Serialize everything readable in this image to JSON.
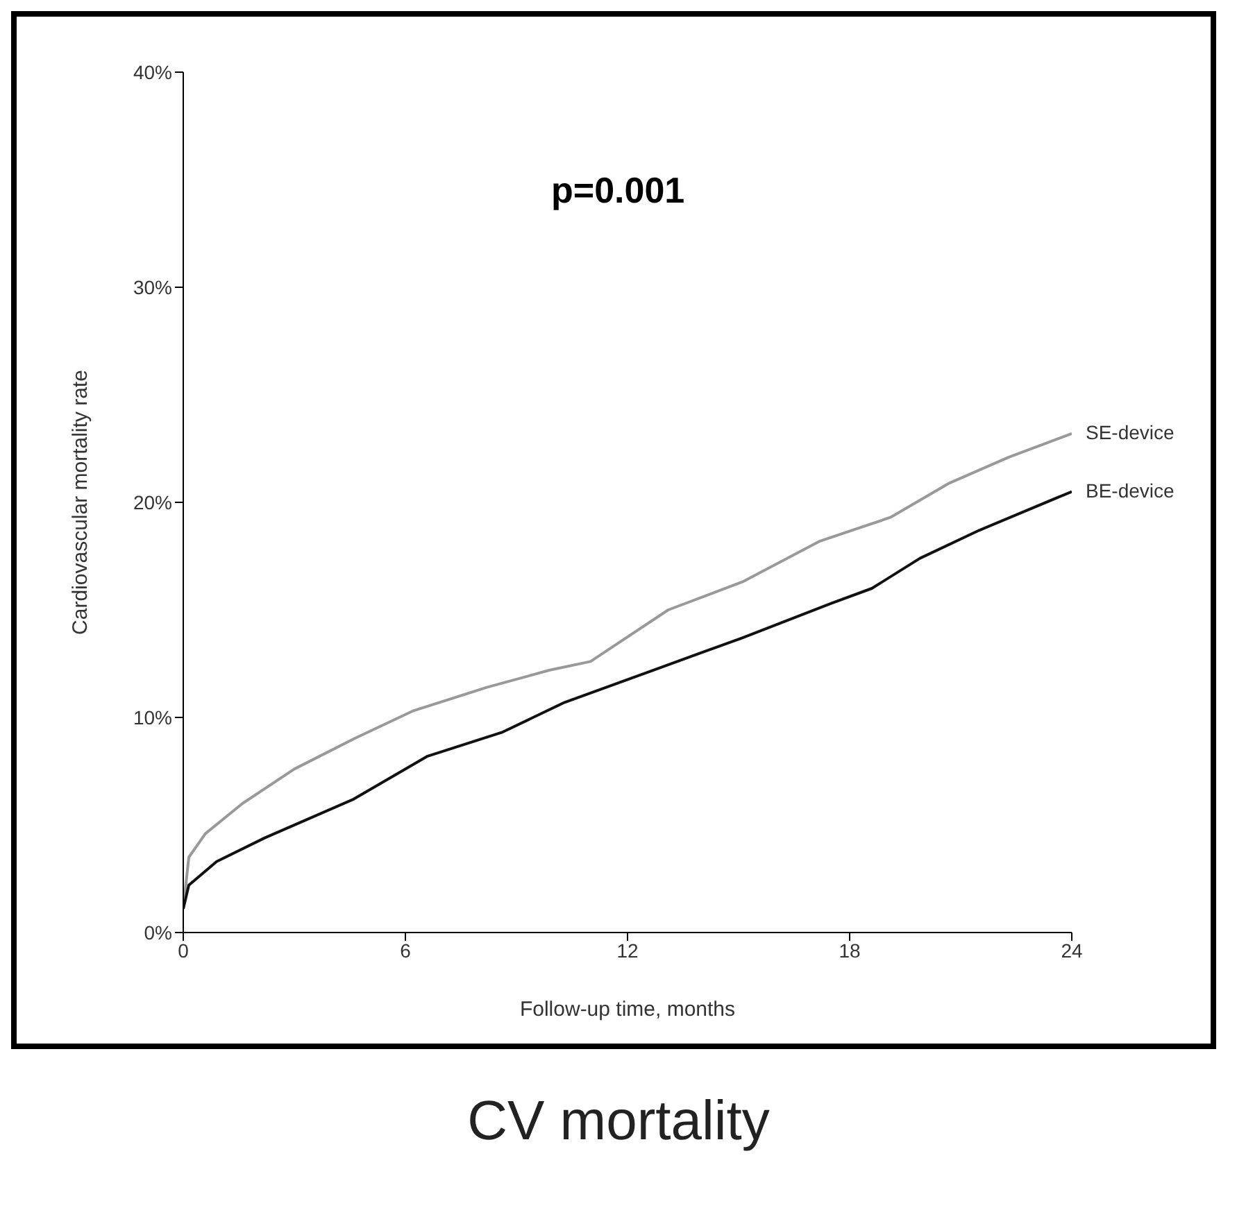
{
  "chart_data": {
    "type": "line",
    "title": "CV mortality",
    "xlabel": "Follow-up time, months",
    "ylabel": "Cardiovascular mortality rate",
    "annotations": [
      "p=0.001"
    ],
    "xlim": [
      0,
      24
    ],
    "xticks": [
      0,
      6,
      12,
      18,
      24
    ],
    "ylim": [
      0,
      40
    ],
    "yticks": [
      {
        "value": 0,
        "label": "0%"
      },
      {
        "value": 10,
        "label": "10%"
      },
      {
        "value": 20,
        "label": "20%"
      },
      {
        "value": 30,
        "label": "30%"
      },
      {
        "value": 40,
        "label": "40%"
      }
    ],
    "grid": false,
    "legend": false,
    "marker": "none",
    "line_style": "solid",
    "series": [
      {
        "name": "SE-device",
        "color": "#999999",
        "x": [
          0,
          0.15,
          0.6,
          1.6,
          3.0,
          4.6,
          6.2,
          8.2,
          9.9,
          11.0,
          13.1,
          15.1,
          17.2,
          19.1,
          20.7,
          22.3,
          24
        ],
        "values": [
          1.1,
          3.5,
          4.6,
          6.0,
          7.6,
          9.0,
          10.3,
          11.4,
          12.2,
          12.6,
          15.0,
          16.3,
          18.2,
          19.3,
          20.9,
          22.1,
          23.2
        ]
      },
      {
        "name": "BE-device",
        "color": "#111111",
        "x": [
          0,
          0.15,
          0.9,
          2.2,
          4.6,
          6.6,
          8.6,
          10.3,
          12.7,
          15.1,
          17.5,
          18.6,
          19.9,
          21.5,
          24
        ],
        "values": [
          1.1,
          2.2,
          3.3,
          4.4,
          6.2,
          8.2,
          9.3,
          10.7,
          12.2,
          13.7,
          15.3,
          16.0,
          17.4,
          18.7,
          20.5
        ]
      }
    ]
  }
}
